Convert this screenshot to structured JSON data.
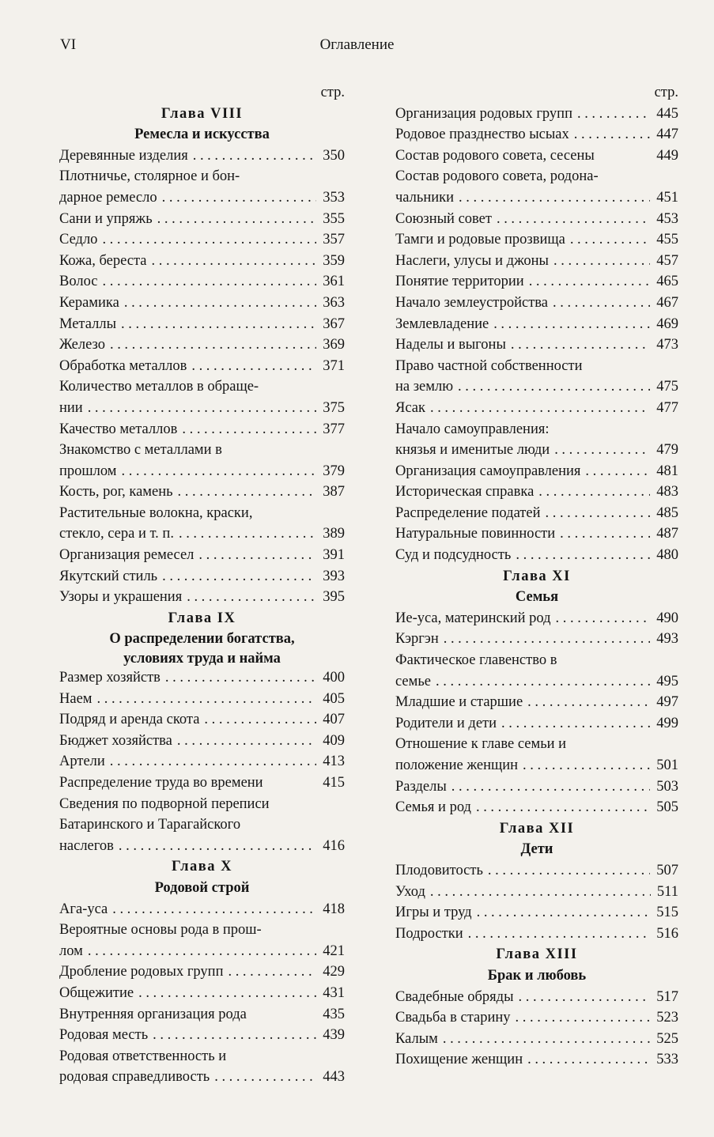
{
  "header": {
    "page_number": "VI",
    "title": "Оглавление"
  },
  "columns": [
    [
      {
        "t": "stp",
        "text": "стр."
      },
      {
        "t": "chap",
        "text": "Глава VIII"
      },
      {
        "t": "sub",
        "text": "Ремесла и искусства"
      },
      {
        "t": "entry",
        "lines": [
          "Деревянные изделия"
        ],
        "page": "350",
        "dots": true
      },
      {
        "t": "entry",
        "lines": [
          "Плотничье, столярное и бон-",
          "дарное ремесло"
        ],
        "page": "353",
        "dots": true
      },
      {
        "t": "entry",
        "lines": [
          "Сани и упряжь"
        ],
        "page": "355",
        "dots": true
      },
      {
        "t": "entry",
        "lines": [
          "Седло"
        ],
        "page": "357",
        "dots": true
      },
      {
        "t": "entry",
        "lines": [
          "Кожа, береста"
        ],
        "page": "359",
        "dots": true
      },
      {
        "t": "entry",
        "lines": [
          "Волос"
        ],
        "page": "361",
        "dots": true
      },
      {
        "t": "entry",
        "lines": [
          "Керамика"
        ],
        "page": "363",
        "dots": true
      },
      {
        "t": "entry",
        "lines": [
          "Металлы"
        ],
        "page": "367",
        "dots": true
      },
      {
        "t": "entry",
        "lines": [
          "Железо"
        ],
        "page": "369",
        "dots": true
      },
      {
        "t": "entry",
        "lines": [
          "Обработка металлов"
        ],
        "page": "371",
        "dots": true
      },
      {
        "t": "entry",
        "lines": [
          "Количество металлов в обраще-",
          "нии"
        ],
        "page": "375",
        "dots": true
      },
      {
        "t": "entry",
        "lines": [
          "Качество металлов"
        ],
        "page": "377",
        "dots": true
      },
      {
        "t": "entry",
        "lines": [
          "Знакомство с металлами в",
          "прошлом"
        ],
        "page": "379",
        "dots": true
      },
      {
        "t": "entry",
        "lines": [
          "Кость, рог, камень"
        ],
        "page": "387",
        "dots": true
      },
      {
        "t": "entry",
        "lines": [
          "Растительные волокна, краски,",
          "стекло, сера и т. п."
        ],
        "page": "389",
        "dots": true
      },
      {
        "t": "entry",
        "lines": [
          "Организация ремесел"
        ],
        "page": "391",
        "dots": true
      },
      {
        "t": "entry",
        "lines": [
          "Якутский стиль"
        ],
        "page": "393",
        "dots": true
      },
      {
        "t": "entry",
        "lines": [
          "Узоры и украшения"
        ],
        "page": "395",
        "dots": true
      },
      {
        "t": "chap",
        "text": "Глава IX"
      },
      {
        "t": "sub",
        "text": "О распределении богатства,"
      },
      {
        "t": "sub",
        "text": "условиях труда и найма",
        "tight": true
      },
      {
        "t": "entry",
        "lines": [
          "Размер хозяйств"
        ],
        "page": "400",
        "dots": true
      },
      {
        "t": "entry",
        "lines": [
          "Наем"
        ],
        "page": "405",
        "dots": true
      },
      {
        "t": "entry",
        "lines": [
          "Подряд и аренда скота"
        ],
        "page": "407",
        "dots": true
      },
      {
        "t": "entry",
        "lines": [
          "Бюджет хозяйства"
        ],
        "page": "409",
        "dots": true
      },
      {
        "t": "entry",
        "lines": [
          "Артели"
        ],
        "page": "413",
        "dots": true
      },
      {
        "t": "entry",
        "lines": [
          "Распределение труда во времени"
        ],
        "page": "415",
        "dots": false
      },
      {
        "t": "entry",
        "lines": [
          "Сведения по подворной переписи",
          "Батаринского и Тарагайского",
          "наслегов"
        ],
        "page": "416",
        "dots": true
      },
      {
        "t": "chap",
        "text": "Глава X"
      },
      {
        "t": "sub",
        "text": "Родовой строй"
      },
      {
        "t": "entry",
        "lines": [
          "Ага-уса"
        ],
        "page": "418",
        "dots": true
      },
      {
        "t": "entry",
        "lines": [
          "Вероятные основы рода в прош-",
          "лом"
        ],
        "page": "421",
        "dots": true
      },
      {
        "t": "entry",
        "lines": [
          "Дробление родовых групп"
        ],
        "page": "429",
        "dots": true
      },
      {
        "t": "entry",
        "lines": [
          "Общежитие"
        ],
        "page": "431",
        "dots": true
      },
      {
        "t": "entry",
        "lines": [
          "Внутренняя организация рода"
        ],
        "page": "435",
        "dots": false
      },
      {
        "t": "entry",
        "lines": [
          "Родовая месть"
        ],
        "page": "439",
        "dots": true
      },
      {
        "t": "entry",
        "lines": [
          "Родовая ответственность и",
          "родовая справедливость"
        ],
        "page": "443",
        "dots": true
      }
    ],
    [
      {
        "t": "stp",
        "text": "стр."
      },
      {
        "t": "entry",
        "lines": [
          "Организация родовых групп"
        ],
        "page": "445",
        "dots": true
      },
      {
        "t": "entry",
        "lines": [
          "Родовое празднество ысыах"
        ],
        "page": "447",
        "dots": true
      },
      {
        "t": "entry",
        "lines": [
          "Состав родового совета, сесены"
        ],
        "page": "449",
        "dots": false
      },
      {
        "t": "entry",
        "lines": [
          "Состав родового совета, родона-",
          "чальники"
        ],
        "page": "451",
        "dots": true
      },
      {
        "t": "entry",
        "lines": [
          "Союзный совет"
        ],
        "page": "453",
        "dots": true
      },
      {
        "t": "entry",
        "lines": [
          "Тамги и родовые прозвища"
        ],
        "page": "455",
        "dots": true
      },
      {
        "t": "entry",
        "lines": [
          "Наслеги, улусы и джоны"
        ],
        "page": "457",
        "dots": true
      },
      {
        "t": "entry",
        "lines": [
          "Понятие территории"
        ],
        "page": "465",
        "dots": true
      },
      {
        "t": "entry",
        "lines": [
          "Начало землеустройства"
        ],
        "page": "467",
        "dots": true
      },
      {
        "t": "entry",
        "lines": [
          "Землевладение"
        ],
        "page": "469",
        "dots": true
      },
      {
        "t": "entry",
        "lines": [
          "Наделы и выгоны"
        ],
        "page": "473",
        "dots": true
      },
      {
        "t": "entry",
        "lines": [
          "Право частной собственности",
          "на землю"
        ],
        "page": "475",
        "dots": true
      },
      {
        "t": "entry",
        "lines": [
          "Ясак"
        ],
        "page": "477",
        "dots": true
      },
      {
        "t": "entry",
        "lines": [
          "Начало самоуправления:",
          "князья и именитые люди"
        ],
        "page": "479",
        "dots": true
      },
      {
        "t": "entry",
        "lines": [
          "Организация самоуправления"
        ],
        "page": "481",
        "dots": true
      },
      {
        "t": "entry",
        "lines": [
          "Историческая справка"
        ],
        "page": "483",
        "dots": true
      },
      {
        "t": "entry",
        "lines": [
          "Распределение податей"
        ],
        "page": "485",
        "dots": true
      },
      {
        "t": "entry",
        "lines": [
          "Натуральные повинности"
        ],
        "page": "487",
        "dots": true
      },
      {
        "t": "entry",
        "lines": [
          "Суд и подсудность"
        ],
        "page": "480",
        "dots": true
      },
      {
        "t": "chap",
        "text": "Глава XI"
      },
      {
        "t": "sub",
        "text": "Семья"
      },
      {
        "t": "entry",
        "lines": [
          "Ие-уса, материнский род"
        ],
        "page": "490",
        "dots": true
      },
      {
        "t": "entry",
        "lines": [
          "Кэргэн"
        ],
        "page": "493",
        "dots": true
      },
      {
        "t": "entry",
        "lines": [
          "Фактическое главенство в",
          "семье"
        ],
        "page": "495",
        "dots": true
      },
      {
        "t": "entry",
        "lines": [
          "Младшие и старшие"
        ],
        "page": "497",
        "dots": true
      },
      {
        "t": "entry",
        "lines": [
          "Родители и дети"
        ],
        "page": "499",
        "dots": true
      },
      {
        "t": "entry",
        "lines": [
          "Отношение к главе семьи и",
          "положение женщин"
        ],
        "page": "501",
        "dots": true
      },
      {
        "t": "entry",
        "lines": [
          "Разделы"
        ],
        "page": "503",
        "dots": true
      },
      {
        "t": "entry",
        "lines": [
          "Семья и род"
        ],
        "page": "505",
        "dots": true
      },
      {
        "t": "chap",
        "text": "Глава XII"
      },
      {
        "t": "sub",
        "text": "Дети"
      },
      {
        "t": "entry",
        "lines": [
          "Плодовитость"
        ],
        "page": "507",
        "dots": true
      },
      {
        "t": "entry",
        "lines": [
          "Уход"
        ],
        "page": "511",
        "dots": true
      },
      {
        "t": "entry",
        "lines": [
          "Игры и труд"
        ],
        "page": "515",
        "dots": true
      },
      {
        "t": "entry",
        "lines": [
          "Подростки"
        ],
        "page": "516",
        "dots": true
      },
      {
        "t": "chap",
        "text": "Глава XIII"
      },
      {
        "t": "sub",
        "text": "Брак и любовь"
      },
      {
        "t": "entry",
        "lines": [
          "Свадебные обряды"
        ],
        "page": "517",
        "dots": true
      },
      {
        "t": "entry",
        "lines": [
          "Свадьба в старину"
        ],
        "page": "523",
        "dots": true
      },
      {
        "t": "entry",
        "lines": [
          "Калым"
        ],
        "page": "525",
        "dots": true
      },
      {
        "t": "entry",
        "lines": [
          "Похищение женщин"
        ],
        "page": "533",
        "dots": true
      }
    ]
  ]
}
